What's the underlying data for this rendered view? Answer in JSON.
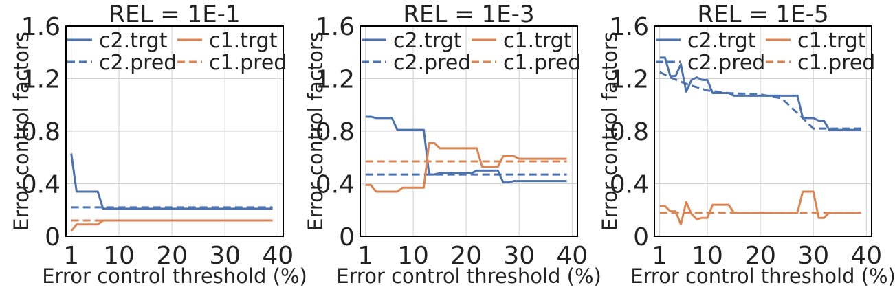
{
  "colors": {
    "c2": "#4C72B0",
    "c1": "#DD8452",
    "grid": "#d0d0d0",
    "frame": "#000000"
  },
  "chart_data": [
    {
      "type": "line",
      "title": "REL = 1E-1",
      "xlabel": "Error control threshold (%)",
      "ylabel": "Error control factors",
      "xlim": [
        0,
        41
      ],
      "ylim": [
        0,
        1.6
      ],
      "xticks": [
        "1",
        "10",
        "20",
        "30",
        "40"
      ],
      "yticks": [
        "0",
        "0.4",
        "0.8",
        "1.2",
        "1.6"
      ],
      "grid": true,
      "legend": "top, 2 columns",
      "series": [
        {
          "name": "c2.trgt",
          "style": "solid",
          "color": "c2",
          "points": [
            [
              1,
              0.63
            ],
            [
              2,
              0.34
            ],
            [
              3,
              0.34
            ],
            [
              4,
              0.34
            ],
            [
              5,
              0.34
            ],
            [
              6,
              0.34
            ],
            [
              7,
              0.21
            ],
            [
              10,
              0.21
            ],
            [
              20,
              0.21
            ],
            [
              30,
              0.21
            ],
            [
              39,
              0.21
            ]
          ]
        },
        {
          "name": "c2.pred",
          "style": "dashed",
          "color": "c2",
          "points": [
            [
              1,
              0.22
            ],
            [
              39,
              0.22
            ]
          ]
        },
        {
          "name": "c1.trgt",
          "style": "solid",
          "color": "c1",
          "points": [
            [
              1,
              0.04
            ],
            [
              2,
              0.09
            ],
            [
              3,
              0.09
            ],
            [
              4,
              0.09
            ],
            [
              5,
              0.09
            ],
            [
              6,
              0.09
            ],
            [
              7,
              0.12
            ],
            [
              10,
              0.12
            ],
            [
              20,
              0.12
            ],
            [
              30,
              0.12
            ],
            [
              39,
              0.12
            ]
          ]
        },
        {
          "name": "c1.pred",
          "style": "dashed",
          "color": "c1",
          "points": [
            [
              1,
              0.12
            ],
            [
              39,
              0.12
            ]
          ]
        }
      ]
    },
    {
      "type": "line",
      "title": "REL = 1E-3",
      "xlabel": "Error control threshold (%)",
      "ylabel": "Error control factors",
      "xlim": [
        0,
        41
      ],
      "ylim": [
        0,
        1.6
      ],
      "xticks": [
        "1",
        "10",
        "20",
        "30",
        "40"
      ],
      "yticks": [
        "0",
        "0.4",
        "0.8",
        "1.2",
        "1.6"
      ],
      "grid": true,
      "legend": "top, 2 columns",
      "series": [
        {
          "name": "c2.trgt",
          "style": "solid",
          "color": "c2",
          "points": [
            [
              1,
              0.91
            ],
            [
              2,
              0.91
            ],
            [
              3,
              0.9
            ],
            [
              4,
              0.9
            ],
            [
              5,
              0.9
            ],
            [
              6,
              0.9
            ],
            [
              7,
              0.81
            ],
            [
              8,
              0.81
            ],
            [
              9,
              0.81
            ],
            [
              10,
              0.81
            ],
            [
              11,
              0.81
            ],
            [
              12,
              0.81
            ],
            [
              13,
              0.47
            ],
            [
              14,
              0.47
            ],
            [
              15,
              0.48
            ],
            [
              16,
              0.48
            ],
            [
              17,
              0.48
            ],
            [
              18,
              0.48
            ],
            [
              19,
              0.48
            ],
            [
              20,
              0.48
            ],
            [
              21,
              0.48
            ],
            [
              22,
              0.5
            ],
            [
              23,
              0.5
            ],
            [
              24,
              0.5
            ],
            [
              25,
              0.5
            ],
            [
              26,
              0.5
            ],
            [
              27,
              0.41
            ],
            [
              28,
              0.41
            ],
            [
              29,
              0.42
            ],
            [
              30,
              0.42
            ],
            [
              31,
              0.42
            ],
            [
              32,
              0.42
            ],
            [
              33,
              0.42
            ],
            [
              34,
              0.42
            ],
            [
              35,
              0.42
            ],
            [
              36,
              0.42
            ],
            [
              37,
              0.42
            ],
            [
              38,
              0.42
            ],
            [
              39,
              0.42
            ]
          ]
        },
        {
          "name": "c2.pred",
          "style": "dashed",
          "color": "c2",
          "points": [
            [
              1,
              0.47
            ],
            [
              39,
              0.47
            ]
          ]
        },
        {
          "name": "c1.trgt",
          "style": "solid",
          "color": "c1",
          "points": [
            [
              1,
              0.39
            ],
            [
              2,
              0.39
            ],
            [
              3,
              0.34
            ],
            [
              4,
              0.34
            ],
            [
              5,
              0.34
            ],
            [
              6,
              0.34
            ],
            [
              7,
              0.34
            ],
            [
              8,
              0.37
            ],
            [
              9,
              0.37
            ],
            [
              10,
              0.37
            ],
            [
              11,
              0.37
            ],
            [
              12,
              0.37
            ],
            [
              13,
              0.71
            ],
            [
              14,
              0.71
            ],
            [
              15,
              0.67
            ],
            [
              16,
              0.67
            ],
            [
              17,
              0.67
            ],
            [
              18,
              0.67
            ],
            [
              19,
              0.67
            ],
            [
              20,
              0.67
            ],
            [
              21,
              0.67
            ],
            [
              22,
              0.67
            ],
            [
              23,
              0.53
            ],
            [
              24,
              0.53
            ],
            [
              25,
              0.53
            ],
            [
              26,
              0.53
            ],
            [
              27,
              0.61
            ],
            [
              28,
              0.61
            ],
            [
              29,
              0.61
            ],
            [
              30,
              0.59
            ],
            [
              31,
              0.59
            ],
            [
              32,
              0.59
            ],
            [
              33,
              0.59
            ],
            [
              34,
              0.59
            ],
            [
              35,
              0.59
            ],
            [
              36,
              0.59
            ],
            [
              37,
              0.59
            ],
            [
              38,
              0.59
            ],
            [
              39,
              0.59
            ]
          ]
        },
        {
          "name": "c1.pred",
          "style": "dashed",
          "color": "c1",
          "points": [
            [
              1,
              0.57
            ],
            [
              39,
              0.57
            ]
          ]
        }
      ]
    },
    {
      "type": "line",
      "title": "REL = 1E-5",
      "xlabel": "Error control threshold (%)",
      "ylabel": "Error control factors",
      "xlim": [
        0,
        41
      ],
      "ylim": [
        0,
        1.6
      ],
      "xticks": [
        "1",
        "10",
        "20",
        "30",
        "40"
      ],
      "yticks": [
        "0",
        "0.4",
        "0.8",
        "1.2",
        "1.6"
      ],
      "grid": true,
      "legend": "top, 2 columns",
      "series": [
        {
          "name": "c2.trgt",
          "style": "solid",
          "color": "c2",
          "points": [
            [
              1,
              1.36
            ],
            [
              2,
              1.36
            ],
            [
              3,
              1.22
            ],
            [
              4,
              1.22
            ],
            [
              5,
              1.31
            ],
            [
              6,
              1.1
            ],
            [
              7,
              1.19
            ],
            [
              8,
              1.21
            ],
            [
              9,
              1.19
            ],
            [
              10,
              1.19
            ],
            [
              11,
              1.09
            ],
            [
              12,
              1.09
            ],
            [
              13,
              1.09
            ],
            [
              14,
              1.09
            ],
            [
              15,
              1.07
            ],
            [
              16,
              1.07
            ],
            [
              17,
              1.07
            ],
            [
              18,
              1.07
            ],
            [
              19,
              1.07
            ],
            [
              20,
              1.07
            ],
            [
              21,
              1.07
            ],
            [
              22,
              1.07
            ],
            [
              23,
              1.07
            ],
            [
              24,
              1.07
            ],
            [
              25,
              1.07
            ],
            [
              26,
              1.07
            ],
            [
              27,
              1.07
            ],
            [
              28,
              0.9
            ],
            [
              29,
              0.9
            ],
            [
              30,
              0.9
            ],
            [
              31,
              0.88
            ],
            [
              32,
              0.88
            ],
            [
              33,
              0.81
            ],
            [
              34,
              0.81
            ],
            [
              35,
              0.81
            ],
            [
              36,
              0.81
            ],
            [
              37,
              0.81
            ],
            [
              38,
              0.81
            ],
            [
              39,
              0.81
            ]
          ]
        },
        {
          "name": "c2.pred",
          "style": "dashed",
          "color": "c2",
          "points": [
            [
              1,
              1.25
            ],
            [
              3,
              1.21
            ],
            [
              6,
              1.16
            ],
            [
              10,
              1.11
            ],
            [
              14,
              1.09
            ],
            [
              20,
              1.08
            ],
            [
              24,
              1.05
            ],
            [
              28,
              0.9
            ],
            [
              30,
              0.82
            ],
            [
              39,
              0.82
            ]
          ]
        },
        {
          "name": "c1.trgt",
          "style": "solid",
          "color": "c1",
          "points": [
            [
              1,
              0.23
            ],
            [
              2,
              0.23
            ],
            [
              3,
              0.19
            ],
            [
              4,
              0.19
            ],
            [
              5,
              0.09
            ],
            [
              6,
              0.26
            ],
            [
              7,
              0.17
            ],
            [
              8,
              0.13
            ],
            [
              9,
              0.14
            ],
            [
              10,
              0.14
            ],
            [
              11,
              0.24
            ],
            [
              12,
              0.24
            ],
            [
              13,
              0.24
            ],
            [
              14,
              0.24
            ],
            [
              15,
              0.18
            ],
            [
              16,
              0.18
            ],
            [
              17,
              0.18
            ],
            [
              18,
              0.18
            ],
            [
              19,
              0.18
            ],
            [
              20,
              0.18
            ],
            [
              21,
              0.18
            ],
            [
              22,
              0.18
            ],
            [
              23,
              0.18
            ],
            [
              24,
              0.18
            ],
            [
              25,
              0.18
            ],
            [
              26,
              0.18
            ],
            [
              27,
              0.18
            ],
            [
              28,
              0.34
            ],
            [
              29,
              0.34
            ],
            [
              30,
              0.34
            ],
            [
              31,
              0.14
            ],
            [
              32,
              0.14
            ],
            [
              33,
              0.18
            ],
            [
              34,
              0.18
            ],
            [
              35,
              0.18
            ],
            [
              36,
              0.18
            ],
            [
              37,
              0.18
            ],
            [
              38,
              0.18
            ],
            [
              39,
              0.18
            ]
          ]
        },
        {
          "name": "c1.pred",
          "style": "dashed",
          "color": "c1",
          "points": [
            [
              1,
              0.18
            ],
            [
              39,
              0.18
            ]
          ]
        }
      ]
    }
  ]
}
